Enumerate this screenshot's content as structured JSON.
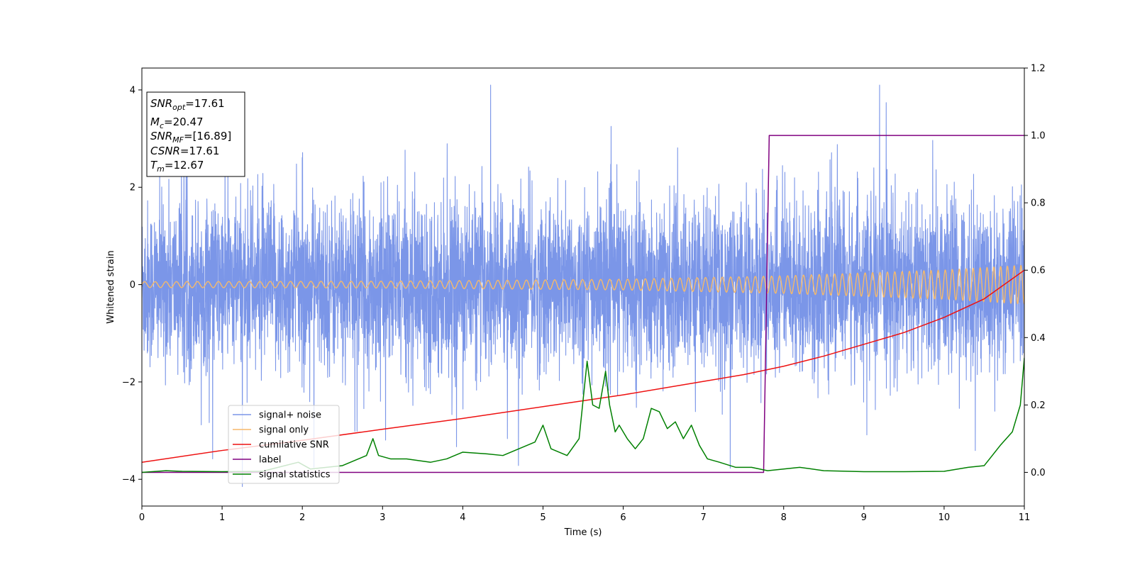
{
  "chart_data": {
    "type": "line",
    "xlabel": "Time (s)",
    "ylabel": "Whitened strain",
    "xlim": [
      0,
      11
    ],
    "ylim": [
      -4.55,
      4.45
    ],
    "y2lim": [
      -0.1,
      1.2
    ],
    "x_ticks": [
      0,
      1,
      2,
      3,
      4,
      5,
      6,
      7,
      8,
      9,
      10,
      11
    ],
    "y_ticks": [
      -4,
      -2,
      0,
      2,
      4
    ],
    "y2_ticks": [
      0.0,
      0.2,
      0.4,
      0.6,
      0.8,
      1.0,
      1.2
    ],
    "grid": false,
    "legend_position": "lower-left",
    "info_box": {
      "snr_opt": {
        "var": "SNR",
        "sub": "opt",
        "value": "=17.61"
      },
      "mc": {
        "var": "M",
        "sub": "c",
        "value": "=20.47"
      },
      "snr_mf": {
        "var": "SNR",
        "sub": "MF",
        "value": "=[16.89]"
      },
      "csnr": {
        "var": "CSNR",
        "value": "=17.61"
      },
      "tm": {
        "var": "T",
        "sub": "m",
        "value": "=12.67"
      }
    },
    "series": [
      {
        "name": "signal+ noise",
        "color": "#7b96e8",
        "axis": "left",
        "kind": "noise",
        "sigma": 1.0,
        "x_range": [
          0,
          11
        ]
      },
      {
        "name": "signal only",
        "color": "#f5b96b",
        "axis": "left",
        "kind": "chirp",
        "amplitude_envelope": [
          [
            0,
            0.06
          ],
          [
            3,
            0.07
          ],
          [
            6,
            0.11
          ],
          [
            8,
            0.18
          ],
          [
            10,
            0.3
          ],
          [
            11,
            0.4
          ]
        ],
        "freq_envelope": [
          [
            0,
            7.5
          ],
          [
            5,
            8.5
          ],
          [
            8,
            10
          ],
          [
            11,
            12
          ]
        ]
      },
      {
        "name": "cumilative SNR",
        "color": "#ee1111",
        "axis": "right",
        "x": [
          0,
          1,
          2,
          3,
          4,
          5,
          6,
          7,
          7.5,
          8,
          8.5,
          9,
          9.5,
          10,
          10.5,
          11
        ],
        "y": [
          0.03,
          0.065,
          0.095,
          0.128,
          0.16,
          0.195,
          0.23,
          0.27,
          0.29,
          0.315,
          0.345,
          0.38,
          0.415,
          0.46,
          0.515,
          0.6
        ]
      },
      {
        "name": "label",
        "color": "#800080",
        "axis": "right",
        "x": [
          0,
          7.75,
          7.82,
          11
        ],
        "y": [
          0,
          0,
          1,
          1
        ]
      },
      {
        "name": "signal statistics",
        "color": "#008000",
        "axis": "right",
        "x": [
          0,
          0.3,
          0.5,
          1.0,
          1.5,
          1.95,
          2.1,
          2.5,
          2.7,
          2.8,
          2.88,
          2.95,
          3.1,
          3.3,
          3.6,
          3.8,
          4.0,
          4.3,
          4.5,
          4.7,
          4.9,
          5.0,
          5.1,
          5.3,
          5.45,
          5.55,
          5.62,
          5.7,
          5.78,
          5.83,
          5.9,
          5.95,
          6.05,
          6.15,
          6.25,
          6.35,
          6.45,
          6.55,
          6.65,
          6.75,
          6.85,
          6.95,
          7.05,
          7.2,
          7.4,
          7.6,
          7.8,
          8.0,
          8.2,
          8.5,
          9.0,
          9.5,
          10.0,
          10.3,
          10.5,
          10.7,
          10.85,
          10.95,
          11.0
        ],
        "y": [
          0.0,
          0.005,
          0.003,
          0.002,
          0.003,
          0.03,
          0.01,
          0.02,
          0.04,
          0.05,
          0.1,
          0.05,
          0.04,
          0.04,
          0.03,
          0.04,
          0.06,
          0.055,
          0.05,
          0.07,
          0.09,
          0.14,
          0.07,
          0.05,
          0.1,
          0.33,
          0.2,
          0.19,
          0.3,
          0.2,
          0.12,
          0.14,
          0.1,
          0.07,
          0.1,
          0.19,
          0.18,
          0.13,
          0.15,
          0.1,
          0.14,
          0.08,
          0.04,
          0.03,
          0.015,
          0.015,
          0.005,
          0.01,
          0.015,
          0.005,
          0.002,
          0.002,
          0.003,
          0.015,
          0.02,
          0.08,
          0.12,
          0.2,
          0.34
        ]
      }
    ]
  }
}
